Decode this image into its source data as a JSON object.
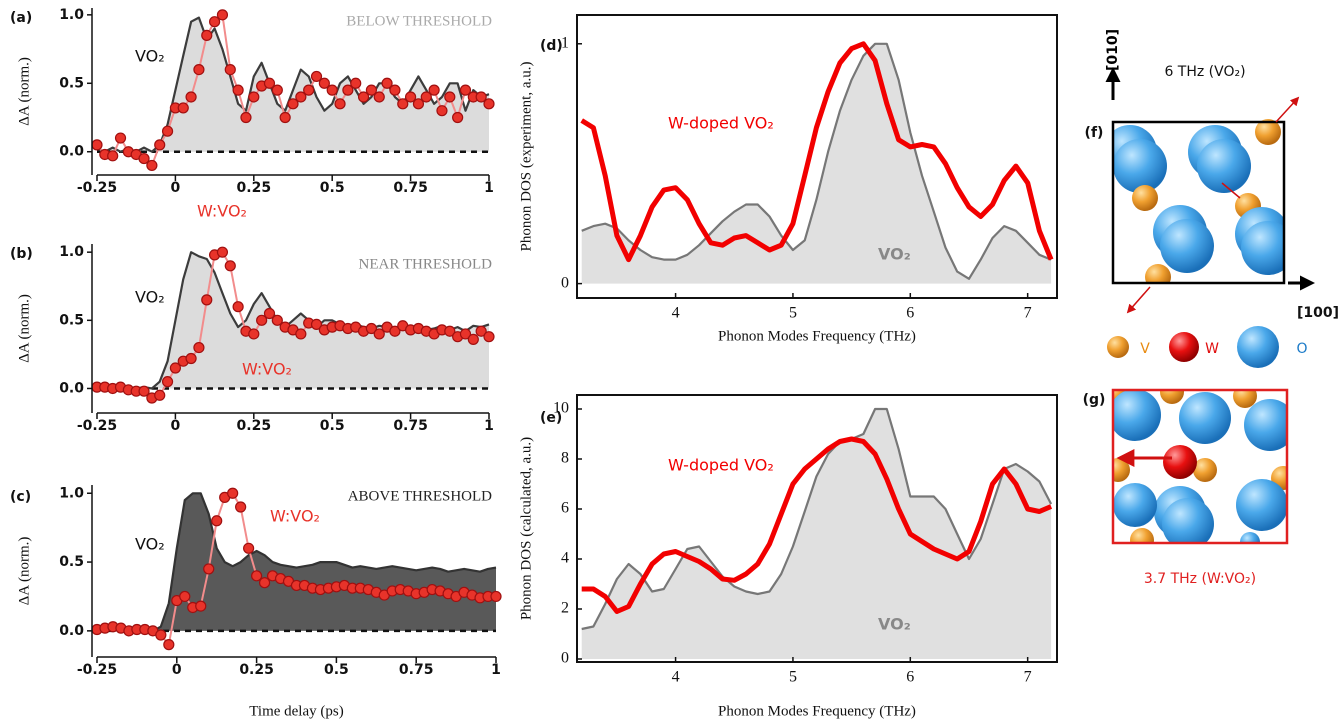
{
  "chart_data": [
    {
      "type": "line",
      "panel_label": "(a)",
      "header": "BELOW THRESHOLD",
      "ylabel": "ΔA (norm.)",
      "x": [
        -0.25,
        -0.225,
        -0.2,
        -0.175,
        -0.15,
        -0.125,
        -0.1,
        -0.075,
        -0.05,
        -0.025,
        0,
        0.025,
        0.05,
        0.075,
        0.1,
        0.125,
        0.15,
        0.175,
        0.2,
        0.225,
        0.25,
        0.275,
        0.3,
        0.325,
        0.35,
        0.375,
        0.4,
        0.425,
        0.45,
        0.475,
        0.5,
        0.525,
        0.55,
        0.575,
        0.6,
        0.625,
        0.65,
        0.675,
        0.7,
        0.725,
        0.75,
        0.775,
        0.8,
        0.825,
        0.85,
        0.875,
        0.9,
        0.925,
        0.95,
        0.975,
        1
      ],
      "series": [
        {
          "name": "VO₂",
          "color": "#3c3c3c",
          "fill": "#dcdcdc",
          "values": [
            0.02,
            0,
            0.03,
            0,
            0.02,
            0,
            0.03,
            0,
            0.05,
            0.2,
            0.45,
            0.7,
            0.95,
            0.98,
            0.82,
            0.9,
            0.75,
            0.55,
            0.35,
            0.3,
            0.55,
            0.65,
            0.5,
            0.35,
            0.3,
            0.45,
            0.6,
            0.55,
            0.4,
            0.3,
            0.35,
            0.5,
            0.55,
            0.45,
            0.35,
            0.4,
            0.5,
            0.5,
            0.4,
            0.35,
            0.45,
            0.55,
            0.45,
            0.35,
            0.4,
            0.5,
            0.5,
            0.3,
            0.45,
            0.4,
            0.42
          ]
        },
        {
          "name": "W:VO₂",
          "color": "#e8332a",
          "line_color": "#f28c8c",
          "markers": true,
          "values": [
            0.05,
            -0.02,
            -0.03,
            0.1,
            0,
            -0.02,
            -0.05,
            -0.1,
            0.05,
            0.15,
            0.32,
            0.32,
            0.4,
            0.6,
            0.85,
            0.95,
            1.0,
            0.6,
            0.45,
            0.25,
            0.4,
            0.48,
            0.5,
            0.45,
            0.25,
            0.35,
            0.4,
            0.45,
            0.55,
            0.5,
            0.45,
            0.35,
            0.45,
            0.5,
            0.4,
            0.45,
            0.4,
            0.5,
            0.45,
            0.35,
            0.4,
            0.35,
            0.4,
            0.45,
            0.3,
            0.4,
            0.25,
            0.45,
            0.4,
            0.4,
            0.35
          ]
        }
      ],
      "xlim": [
        -0.25,
        1
      ],
      "ylim": [
        -0.17,
        1.05
      ],
      "xticks": [
        -0.25,
        0,
        0.25,
        0.5,
        0.75,
        1
      ],
      "yticks": [
        {
          "value": 0,
          "label": "0.0"
        },
        {
          "value": 0.5,
          "label": "0.5"
        },
        {
          "value": 1,
          "label": "1.0"
        }
      ]
    },
    {
      "type": "line",
      "panel_label": "(b)",
      "header": "NEAR THRESHOLD",
      "ylabel": "ΔA (norm.)",
      "x": [
        -0.25,
        -0.225,
        -0.2,
        -0.175,
        -0.15,
        -0.125,
        -0.1,
        -0.075,
        -0.05,
        -0.025,
        0,
        0.025,
        0.05,
        0.075,
        0.1,
        0.125,
        0.15,
        0.175,
        0.2,
        0.225,
        0.25,
        0.275,
        0.3,
        0.325,
        0.35,
        0.375,
        0.4,
        0.425,
        0.45,
        0.475,
        0.5,
        0.525,
        0.55,
        0.575,
        0.6,
        0.625,
        0.65,
        0.675,
        0.7,
        0.725,
        0.75,
        0.775,
        0.8,
        0.825,
        0.85,
        0.875,
        0.9,
        0.925,
        0.95,
        0.975,
        1
      ],
      "series": [
        {
          "name": "VO₂",
          "color": "#3c3c3c",
          "fill": "#dcdcdc",
          "values": [
            0,
            0.01,
            0,
            0.01,
            0,
            0,
            0.01,
            0,
            0.05,
            0.2,
            0.5,
            0.8,
            1.0,
            0.97,
            0.95,
            0.85,
            0.7,
            0.55,
            0.45,
            0.5,
            0.62,
            0.7,
            0.6,
            0.5,
            0.45,
            0.5,
            0.55,
            0.5,
            0.45,
            0.5,
            0.5,
            0.47,
            0.45,
            0.47,
            0.45,
            0.44,
            0.46,
            0.45,
            0.43,
            0.45,
            0.44,
            0.45,
            0.43,
            0.44,
            0.46,
            0.43,
            0.45,
            0.42,
            0.46,
            0.45,
            0.47
          ]
        },
        {
          "name": "W:VO₂",
          "color": "#e8332a",
          "line_color": "#f28c8c",
          "markers": true,
          "values": [
            0.01,
            0.01,
            0,
            0.01,
            -0.01,
            -0.02,
            -0.02,
            -0.07,
            -0.05,
            0.05,
            0.15,
            0.2,
            0.22,
            0.3,
            0.65,
            0.98,
            1.0,
            0.9,
            0.6,
            0.42,
            0.4,
            0.5,
            0.55,
            0.5,
            0.45,
            0.43,
            0.4,
            0.48,
            0.47,
            0.43,
            0.45,
            0.46,
            0.44,
            0.45,
            0.42,
            0.44,
            0.4,
            0.45,
            0.42,
            0.46,
            0.43,
            0.44,
            0.42,
            0.4,
            0.43,
            0.42,
            0.38,
            0.4,
            0.36,
            0.42,
            0.38
          ]
        }
      ],
      "xlim": [
        -0.25,
        1
      ],
      "ylim": [
        -0.18,
        1.06
      ],
      "xticks": [
        -0.25,
        0,
        0.25,
        0.5,
        0.75,
        1
      ],
      "yticks": [
        {
          "value": 0,
          "label": "0.0"
        },
        {
          "value": 0.5,
          "label": "0.5"
        },
        {
          "value": 1,
          "label": "1.0"
        }
      ]
    },
    {
      "type": "line",
      "panel_label": "(c)",
      "header": "ABOVE THRESHOLD",
      "ylabel": "ΔA (norm.)",
      "xlabel": "Time delay (ps)",
      "x": [
        -0.25,
        -0.225,
        -0.2,
        -0.175,
        -0.15,
        -0.125,
        -0.1,
        -0.075,
        -0.05,
        -0.025,
        0,
        0.025,
        0.05,
        0.075,
        0.1,
        0.125,
        0.15,
        0.175,
        0.2,
        0.225,
        0.25,
        0.275,
        0.3,
        0.325,
        0.35,
        0.375,
        0.4,
        0.425,
        0.45,
        0.475,
        0.5,
        0.525,
        0.55,
        0.575,
        0.6,
        0.625,
        0.65,
        0.675,
        0.7,
        0.725,
        0.75,
        0.775,
        0.8,
        0.825,
        0.85,
        0.875,
        0.9,
        0.925,
        0.95,
        0.975,
        1
      ],
      "series": [
        {
          "name": "VO₂",
          "color": "#333333",
          "fill": "#595959",
          "values": [
            0,
            0.01,
            0,
            0.01,
            0,
            0.01,
            0,
            0,
            0.03,
            0.2,
            0.6,
            0.95,
            1.0,
            1.0,
            0.85,
            0.6,
            0.5,
            0.47,
            0.5,
            0.55,
            0.58,
            0.55,
            0.5,
            0.48,
            0.47,
            0.46,
            0.47,
            0.48,
            0.5,
            0.5,
            0.5,
            0.48,
            0.46,
            0.47,
            0.46,
            0.45,
            0.46,
            0.47,
            0.46,
            0.45,
            0.44,
            0.45,
            0.46,
            0.45,
            0.43,
            0.44,
            0.45,
            0.44,
            0.43,
            0.45,
            0.46
          ]
        },
        {
          "name": "W:VO₂",
          "color": "#e8332a",
          "line_color": "#f28c8c",
          "markers": true,
          "values": [
            0.01,
            0.02,
            0.03,
            0.02,
            0,
            0.01,
            0.01,
            0,
            -0.03,
            -0.1,
            0.22,
            0.25,
            0.17,
            0.18,
            0.45,
            0.8,
            0.97,
            1.0,
            0.9,
            0.6,
            0.4,
            0.35,
            0.4,
            0.38,
            0.36,
            0.33,
            0.33,
            0.31,
            0.3,
            0.31,
            0.32,
            0.33,
            0.31,
            0.31,
            0.3,
            0.28,
            0.26,
            0.29,
            0.3,
            0.29,
            0.27,
            0.28,
            0.3,
            0.29,
            0.27,
            0.25,
            0.28,
            0.26,
            0.24,
            0.25,
            0.25
          ]
        }
      ],
      "xlim": [
        -0.25,
        1
      ],
      "ylim": [
        -0.19,
        1.06
      ],
      "xticks": [
        -0.25,
        0,
        0.25,
        0.5,
        0.75,
        1
      ],
      "yticks": [
        {
          "value": 0,
          "label": "0.0"
        },
        {
          "value": 0.5,
          "label": "0.5"
        },
        {
          "value": 1,
          "label": "1.0"
        }
      ]
    },
    {
      "type": "line",
      "panel_label": "(d)",
      "ylabel": "Phonon DOS (experiment, a.u.)",
      "xlabel": "Phonon Modes Frequency (THz)",
      "x": [
        3.2,
        3.3,
        3.4,
        3.5,
        3.6,
        3.7,
        3.8,
        3.9,
        4.0,
        4.1,
        4.2,
        4.3,
        4.4,
        4.5,
        4.6,
        4.7,
        4.8,
        4.9,
        5.0,
        5.1,
        5.2,
        5.3,
        5.4,
        5.5,
        5.6,
        5.7,
        5.8,
        5.9,
        6.0,
        6.1,
        6.2,
        6.3,
        6.4,
        6.5,
        6.6,
        6.7,
        6.8,
        6.9,
        7.0,
        7.1,
        7.2
      ],
      "series": [
        {
          "name": "VO₂",
          "color": "#777777",
          "fill": "#e0e0e0",
          "values": [
            0.22,
            0.24,
            0.25,
            0.23,
            0.18,
            0.14,
            0.11,
            0.1,
            0.1,
            0.12,
            0.16,
            0.21,
            0.26,
            0.3,
            0.33,
            0.33,
            0.28,
            0.2,
            0.14,
            0.18,
            0.35,
            0.55,
            0.72,
            0.85,
            0.95,
            1.0,
            1.0,
            0.85,
            0.63,
            0.45,
            0.3,
            0.15,
            0.05,
            0.02,
            0.1,
            0.19,
            0.24,
            0.22,
            0.17,
            0.12,
            0.1
          ]
        },
        {
          "name": "W-doped VO₂",
          "color": "#f20000",
          "values": [
            0.68,
            0.65,
            0.45,
            0.2,
            0.1,
            0.2,
            0.32,
            0.39,
            0.4,
            0.35,
            0.25,
            0.17,
            0.16,
            0.19,
            0.2,
            0.17,
            0.14,
            0.16,
            0.25,
            0.45,
            0.65,
            0.8,
            0.92,
            0.98,
            1.0,
            0.93,
            0.75,
            0.6,
            0.57,
            0.58,
            0.57,
            0.5,
            0.4,
            0.32,
            0.28,
            0.33,
            0.43,
            0.49,
            0.42,
            0.22,
            0.1
          ]
        }
      ],
      "xlim": [
        3.16,
        7.25
      ],
      "ylim": [
        -0.06,
        1.12
      ],
      "xticks": [
        4,
        5,
        6,
        7
      ],
      "yticks": [
        0,
        1
      ]
    },
    {
      "type": "line",
      "panel_label": "(e)",
      "ylabel": "Phonon DOS (calculated, a.u.)",
      "xlabel": "Phonon Modes Frequency (THz)",
      "x": [
        3.2,
        3.3,
        3.4,
        3.5,
        3.6,
        3.7,
        3.8,
        3.9,
        4.0,
        4.1,
        4.2,
        4.3,
        4.4,
        4.5,
        4.6,
        4.7,
        4.8,
        4.9,
        5.0,
        5.1,
        5.2,
        5.3,
        5.4,
        5.5,
        5.6,
        5.7,
        5.8,
        5.9,
        6.0,
        6.1,
        6.2,
        6.3,
        6.4,
        6.5,
        6.6,
        6.7,
        6.8,
        6.9,
        7.0,
        7.1,
        7.2
      ],
      "series": [
        {
          "name": "VO₂",
          "color": "#777777",
          "fill": "#e0e0e0",
          "values": [
            1.2,
            1.3,
            2.2,
            3.2,
            3.8,
            3.4,
            2.7,
            2.8,
            3.6,
            4.4,
            4.5,
            3.9,
            3.3,
            2.9,
            2.7,
            2.6,
            2.7,
            3.4,
            4.5,
            5.9,
            7.3,
            8.2,
            8.7,
            8.8,
            9.0,
            10.0,
            10.0,
            8.4,
            6.5,
            6.5,
            6.5,
            6.0,
            5.0,
            4.0,
            4.8,
            6.2,
            7.6,
            7.8,
            7.5,
            7.1,
            6.2
          ]
        },
        {
          "name": "W-doped VO₂",
          "color": "#f20000",
          "values": [
            2.8,
            2.8,
            2.5,
            1.9,
            2.1,
            3.0,
            3.8,
            4.2,
            4.3,
            4.1,
            3.9,
            3.6,
            3.2,
            3.15,
            3.4,
            3.8,
            4.6,
            5.8,
            7.0,
            7.6,
            8.0,
            8.4,
            8.7,
            8.8,
            8.7,
            8.2,
            7.2,
            6.0,
            5.0,
            4.7,
            4.4,
            4.2,
            4.0,
            4.3,
            5.5,
            7.0,
            7.6,
            7.0,
            6.0,
            5.9,
            6.1
          ]
        }
      ],
      "xlim": [
        3.16,
        7.25
      ],
      "ylim": [
        -0.12,
        10.56
      ],
      "xticks": [
        4,
        5,
        6,
        7
      ],
      "yticks": [
        0,
        2,
        4,
        6,
        8,
        10
      ]
    }
  ],
  "structure": {
    "f_label": "(f)",
    "axis_010": "[010]",
    "axis_100": "[100]",
    "mode_f": "6 THz (VO₂)",
    "legend": [
      "V",
      "W",
      "O"
    ],
    "g_label": "(g)",
    "mode_g": "3.7 THz (W:VO₂)"
  }
}
